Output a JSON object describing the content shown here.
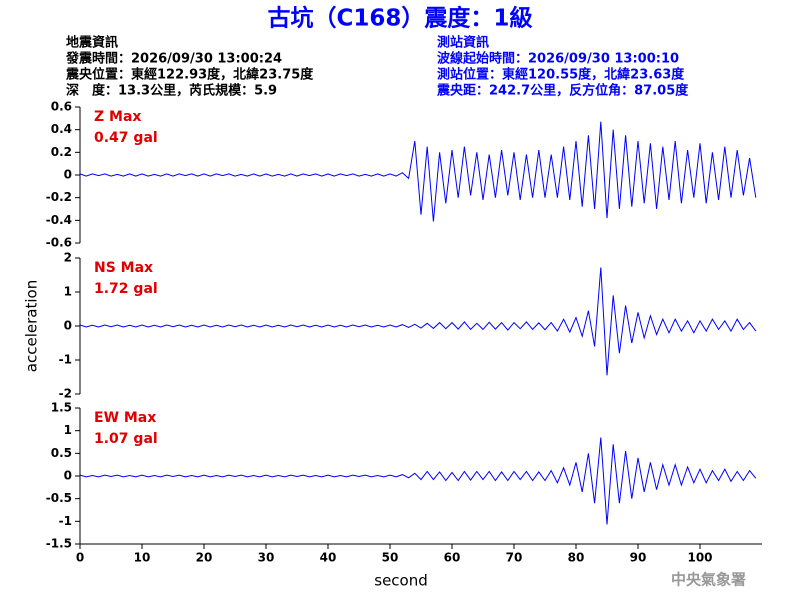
{
  "header": {
    "title": "古坑（C168）震度：1級",
    "left": [
      "地震資訊",
      "發震時間：2026/09/30 13:00:24",
      "震央位置：東經122.93度，北緯23.75度",
      "深　度：13.3公里，芮氏規模：5.9"
    ],
    "right": [
      "測站資訊",
      "波線起始時間：2026/09/30 13:00:10",
      "測站位置：東經120.55度，北緯23.63度",
      "震央距：242.7公里，反方位角：87.05度"
    ],
    "footer": "中央氣象署"
  },
  "chart_data": [
    {
      "type": "line",
      "label": "Z Max",
      "max_label": "0.47 gal",
      "color": "#0000ff",
      "xlim": [
        0,
        110
      ],
      "ylim": [
        -0.6,
        0.6
      ],
      "yticks": [
        0.6,
        0.4,
        0.2,
        0,
        -0.2,
        -0.4,
        -0.6
      ],
      "x": [
        0,
        1,
        2,
        3,
        4,
        5,
        6,
        7,
        8,
        9,
        10,
        11,
        12,
        13,
        14,
        15,
        16,
        17,
        18,
        19,
        20,
        21,
        22,
        23,
        24,
        25,
        26,
        27,
        28,
        29,
        30,
        31,
        32,
        33,
        34,
        35,
        36,
        37,
        38,
        39,
        40,
        41,
        42,
        43,
        44,
        45,
        46,
        47,
        48,
        49,
        50,
        51,
        52,
        53,
        54,
        55,
        56,
        57,
        58,
        59,
        60,
        61,
        62,
        63,
        64,
        65,
        66,
        67,
        68,
        69,
        70,
        71,
        72,
        73,
        74,
        75,
        76,
        77,
        78,
        79,
        80,
        81,
        82,
        83,
        84,
        85,
        86,
        87,
        88,
        89,
        90,
        91,
        92,
        93,
        94,
        95,
        96,
        97,
        98,
        99,
        100,
        101,
        102,
        103,
        104,
        105,
        106,
        107,
        108,
        109
      ],
      "values": [
        0.01,
        -0.01,
        0.01,
        -0.005,
        0.01,
        -0.01,
        0.005,
        -0.01,
        0.01,
        -0.01,
        0.01,
        -0.01,
        0.005,
        -0.01,
        0.01,
        -0.01,
        0.01,
        -0.005,
        0.01,
        -0.01,
        0.01,
        -0.01,
        0.01,
        -0.005,
        0.01,
        -0.01,
        0.005,
        -0.01,
        0.01,
        -0.01,
        0.01,
        -0.01,
        0.005,
        -0.01,
        0.01,
        -0.01,
        0.01,
        -0.005,
        0.01,
        -0.01,
        0.01,
        -0.01,
        0.01,
        -0.005,
        0.01,
        -0.01,
        0.005,
        -0.01,
        0.01,
        -0.01,
        0.01,
        -0.01,
        0.02,
        -0.03,
        0.3,
        -0.35,
        0.25,
        -0.41,
        0.2,
        -0.25,
        0.22,
        -0.2,
        0.25,
        -0.18,
        0.2,
        -0.22,
        0.18,
        -0.2,
        0.22,
        -0.18,
        0.2,
        -0.22,
        0.18,
        -0.2,
        0.22,
        -0.2,
        0.18,
        -0.2,
        0.25,
        -0.22,
        0.3,
        -0.28,
        0.35,
        -0.3,
        0.47,
        -0.38,
        0.4,
        -0.3,
        0.35,
        -0.28,
        0.3,
        -0.25,
        0.28,
        -0.3,
        0.25,
        -0.22,
        0.3,
        -0.25,
        0.22,
        -0.2,
        0.28,
        -0.25,
        0.2,
        -0.22,
        0.25,
        -0.2,
        0.22,
        -0.18,
        0.15,
        -0.2
      ]
    },
    {
      "type": "line",
      "label": "NS Max",
      "max_label": "1.72 gal",
      "color": "#0000ff",
      "ylabel": "acceleration",
      "xlim": [
        0,
        110
      ],
      "ylim": [
        -2,
        2
      ],
      "yticks": [
        2,
        1,
        0,
        -1,
        -2
      ],
      "x": [
        0,
        1,
        2,
        3,
        4,
        5,
        6,
        7,
        8,
        9,
        10,
        11,
        12,
        13,
        14,
        15,
        16,
        17,
        18,
        19,
        20,
        21,
        22,
        23,
        24,
        25,
        26,
        27,
        28,
        29,
        30,
        31,
        32,
        33,
        34,
        35,
        36,
        37,
        38,
        39,
        40,
        41,
        42,
        43,
        44,
        45,
        46,
        47,
        48,
        49,
        50,
        51,
        52,
        53,
        54,
        55,
        56,
        57,
        58,
        59,
        60,
        61,
        62,
        63,
        64,
        65,
        66,
        67,
        68,
        69,
        70,
        71,
        72,
        73,
        74,
        75,
        76,
        77,
        78,
        79,
        80,
        81,
        82,
        83,
        84,
        85,
        86,
        87,
        88,
        89,
        90,
        91,
        92,
        93,
        94,
        95,
        96,
        97,
        98,
        99,
        100,
        101,
        102,
        103,
        104,
        105,
        106,
        107,
        108,
        109
      ],
      "values": [
        0.03,
        -0.03,
        0.02,
        -0.03,
        0.03,
        -0.02,
        0.03,
        -0.03,
        0.02,
        -0.03,
        0.03,
        -0.03,
        0.02,
        -0.03,
        0.03,
        -0.02,
        0.03,
        -0.03,
        0.02,
        -0.03,
        0.03,
        -0.03,
        0.02,
        -0.03,
        0.03,
        -0.02,
        0.03,
        -0.03,
        0.02,
        -0.03,
        0.03,
        -0.03,
        0.02,
        -0.03,
        0.03,
        -0.02,
        0.03,
        -0.03,
        0.02,
        -0.03,
        0.03,
        -0.03,
        0.02,
        -0.03,
        0.03,
        -0.02,
        0.03,
        -0.03,
        0.02,
        -0.03,
        0.03,
        -0.03,
        0.04,
        -0.04,
        0.05,
        -0.06,
        0.08,
        -0.07,
        0.1,
        -0.08,
        0.1,
        -0.09,
        0.12,
        -0.1,
        0.08,
        -0.1,
        0.11,
        -0.09,
        0.1,
        -0.12,
        0.1,
        -0.08,
        0.12,
        -0.1,
        0.09,
        -0.11,
        0.1,
        -0.15,
        0.2,
        -0.18,
        0.25,
        -0.3,
        0.45,
        -0.6,
        1.72,
        -1.45,
        0.9,
        -0.8,
        0.6,
        -0.5,
        0.4,
        -0.35,
        0.3,
        -0.25,
        0.2,
        -0.2,
        0.2,
        -0.15,
        0.15,
        -0.2,
        0.15,
        -0.15,
        0.2,
        -0.1,
        0.15,
        -0.15,
        0.2,
        -0.1,
        0.1,
        -0.15
      ]
    },
    {
      "type": "line",
      "label": "EW Max",
      "max_label": "1.07 gal",
      "color": "#0000ff",
      "xlabel": "second",
      "xlim": [
        0,
        110
      ],
      "xticks": [
        0,
        10,
        20,
        30,
        40,
        50,
        60,
        70,
        80,
        90,
        100
      ],
      "ylim": [
        -1.5,
        1.5
      ],
      "yticks": [
        1.5,
        1,
        0.5,
        0,
        -0.5,
        -1,
        -1.5
      ],
      "x": [
        0,
        1,
        2,
        3,
        4,
        5,
        6,
        7,
        8,
        9,
        10,
        11,
        12,
        13,
        14,
        15,
        16,
        17,
        18,
        19,
        20,
        21,
        22,
        23,
        24,
        25,
        26,
        27,
        28,
        29,
        30,
        31,
        32,
        33,
        34,
        35,
        36,
        37,
        38,
        39,
        40,
        41,
        42,
        43,
        44,
        45,
        46,
        47,
        48,
        49,
        50,
        51,
        52,
        53,
        54,
        55,
        56,
        57,
        58,
        59,
        60,
        61,
        62,
        63,
        64,
        65,
        66,
        67,
        68,
        69,
        70,
        71,
        72,
        73,
        74,
        75,
        76,
        77,
        78,
        79,
        80,
        81,
        82,
        83,
        84,
        85,
        86,
        87,
        88,
        89,
        90,
        91,
        92,
        93,
        94,
        95,
        96,
        97,
        98,
        99,
        100,
        101,
        102,
        103,
        104,
        105,
        106,
        107,
        108,
        109
      ],
      "values": [
        0.02,
        -0.02,
        0.01,
        -0.02,
        0.02,
        -0.01,
        0.02,
        -0.02,
        0.01,
        -0.02,
        0.02,
        -0.02,
        0.01,
        -0.02,
        0.02,
        -0.01,
        0.02,
        -0.02,
        0.01,
        -0.02,
        0.02,
        -0.02,
        0.01,
        -0.02,
        0.02,
        -0.01,
        0.02,
        -0.02,
        0.01,
        -0.02,
        0.02,
        -0.02,
        0.01,
        -0.02,
        0.02,
        -0.01,
        0.02,
        -0.02,
        0.01,
        -0.02,
        0.02,
        -0.02,
        0.01,
        -0.02,
        0.02,
        -0.01,
        0.02,
        -0.02,
        0.01,
        -0.02,
        0.02,
        -0.02,
        0.03,
        -0.04,
        0.06,
        -0.08,
        0.1,
        -0.08,
        0.09,
        -0.1,
        0.08,
        -0.1,
        0.1,
        -0.09,
        0.1,
        -0.08,
        0.1,
        -0.1,
        0.09,
        -0.1,
        0.1,
        -0.08,
        0.1,
        -0.1,
        0.09,
        -0.1,
        0.12,
        -0.15,
        0.18,
        -0.2,
        0.3,
        -0.35,
        0.5,
        -0.6,
        0.85,
        -1.07,
        0.7,
        -0.6,
        0.55,
        -0.5,
        0.4,
        -0.35,
        0.3,
        -0.3,
        0.25,
        -0.2,
        0.25,
        -0.2,
        0.2,
        -0.15,
        0.15,
        -0.15,
        0.12,
        -0.1,
        0.15,
        -0.12,
        0.1,
        -0.1,
        0.12,
        -0.05
      ]
    }
  ]
}
